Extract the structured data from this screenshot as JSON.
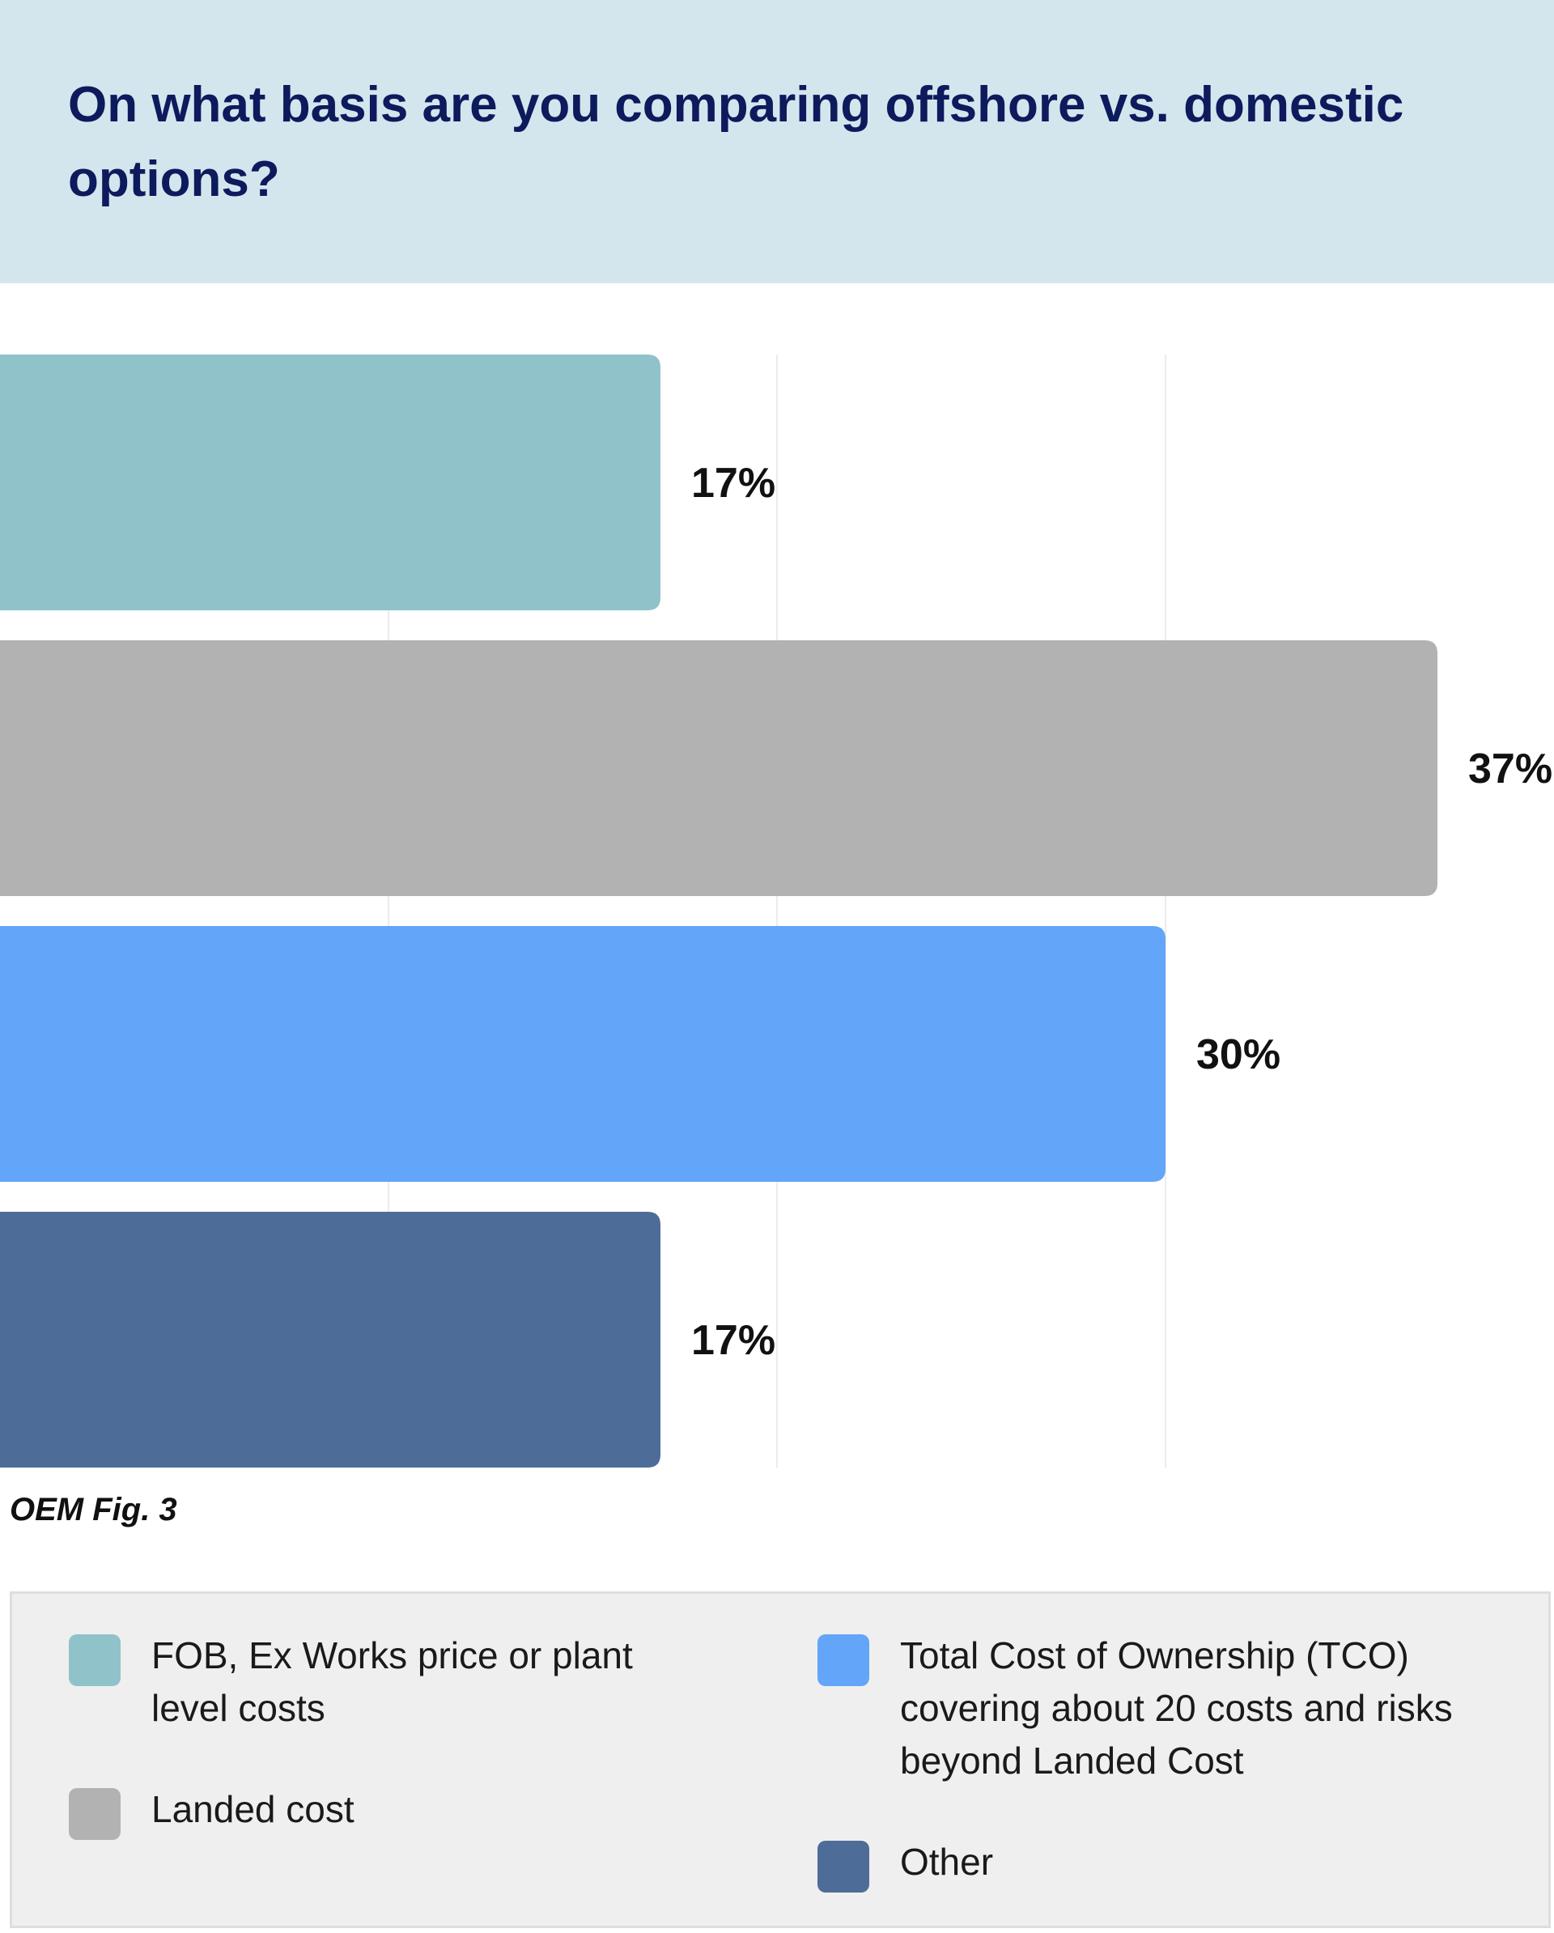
{
  "chart_data": {
    "type": "bar",
    "orientation": "horizontal",
    "title": "On what basis are you comparing offshore vs. domestic options?",
    "categories": [
      "FOB, Ex Works price or plant level costs",
      "Landed cost",
      "Total Cost of Ownership (TCO) covering about 20 costs and risks beyond Landed Cost",
      "Other"
    ],
    "values": [
      17,
      37,
      30,
      17
    ],
    "value_labels": [
      "17%",
      "37%",
      "30%",
      "17%"
    ],
    "colors": [
      "#90c2c9",
      "#b3b2b3",
      "#63a5f8",
      "#4e6c98"
    ],
    "xlim": [
      0,
      40
    ],
    "grid": true,
    "legend_position": "bottom",
    "caption": "OEM Fig. 3"
  },
  "legend": {
    "items": [
      {
        "label": "FOB, Ex Works price or plant level costs",
        "color": "#90c2c9"
      },
      {
        "label": "Landed cost",
        "color": "#b3b2b3"
      },
      {
        "label": "Total Cost of Ownership (TCO) covering about 20 costs and risks beyond Landed Cost",
        "color": "#63a5f8"
      },
      {
        "label": "Other",
        "color": "#4e6c98"
      }
    ]
  },
  "colors": {
    "header_background": "#d3e6ee",
    "title_text": "#0d1a5c",
    "legend_background": "#efefef"
  }
}
